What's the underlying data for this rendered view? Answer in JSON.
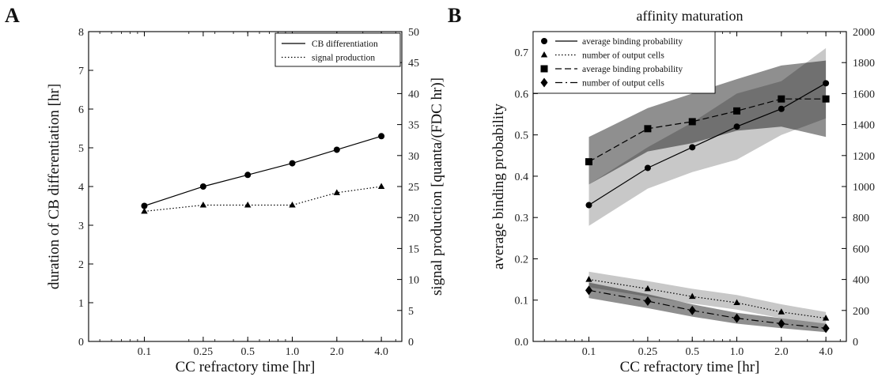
{
  "figure": {
    "panel_a_letter": "A",
    "panel_b_letter": "B"
  },
  "chart_data": [
    {
      "panel": "A",
      "type": "line",
      "title": "",
      "xlabel": "CC refractory time [hr]",
      "ylabel_left": "duration of CB differentiation [hr]",
      "ylabel_right": "signal production [quanta/(FDC hr)]",
      "x_scale": "log",
      "x": [
        0.1,
        0.25,
        0.5,
        1.0,
        2.0,
        4.0
      ],
      "x_tick_labels": [
        "0.1",
        "0.25",
        "0.5",
        "1.0",
        "2.0",
        "4.0"
      ],
      "ylim_left": [
        0,
        8
      ],
      "ylim_right": [
        0,
        50
      ],
      "y_ticks_left": [
        "0",
        "1",
        "2",
        "3",
        "4",
        "5",
        "6",
        "7",
        "8"
      ],
      "y_ticks_right": [
        "0",
        "5",
        "10",
        "15",
        "20",
        "25",
        "30",
        "35",
        "40",
        "45",
        "50"
      ],
      "legend_position": "top-right",
      "series": [
        {
          "name": "CB differentiation",
          "axis": "left",
          "line": "solid",
          "marker": "circle",
          "color": "#000000",
          "values": [
            3.5,
            4.0,
            4.3,
            4.6,
            4.95,
            5.3
          ]
        },
        {
          "name": "signal production",
          "axis": "right",
          "line": "dotted",
          "marker": "triangle",
          "color": "#000000",
          "values": [
            21.0,
            22.0,
            22.0,
            22.0,
            24.0,
            25.0
          ]
        }
      ]
    },
    {
      "panel": "B",
      "type": "line",
      "title": "affinity maturation",
      "xlabel": "CC refractory time [hr]",
      "ylabel_left": "average binding probability",
      "ylabel_right": "number of output cells",
      "x_scale": "log",
      "x": [
        0.1,
        0.25,
        0.5,
        1.0,
        2.0,
        4.0
      ],
      "x_tick_labels": [
        "0.1",
        "0.25",
        "0.5",
        "1.0",
        "2.0",
        "4.0"
      ],
      "ylim_left": [
        0,
        0.75
      ],
      "ylim_right": [
        0,
        2000
      ],
      "y_ticks_left": [
        "0.0",
        "0.1",
        "0.2",
        "0.3",
        "0.4",
        "0.5",
        "0.6",
        "0.7"
      ],
      "y_ticks_right": [
        "0",
        "200",
        "400",
        "600",
        "800",
        "1000",
        "1200",
        "1400",
        "1600",
        "1800",
        "2000"
      ],
      "legend_position": "top-left",
      "series": [
        {
          "name": "average binding probability",
          "axis": "left",
          "line": "solid",
          "marker": "circle",
          "color": "#000000",
          "values": [
            0.33,
            0.42,
            0.47,
            0.52,
            0.563,
            0.625
          ],
          "band_low": [
            0.28,
            0.37,
            0.41,
            0.44,
            0.5,
            0.54
          ],
          "band_high": [
            0.38,
            0.47,
            0.53,
            0.6,
            0.63,
            0.71
          ],
          "band_color": "#c8c8c8"
        },
        {
          "name": "number of output cells",
          "axis": "right",
          "line": "dotted",
          "marker": "triangle",
          "color": "#000000",
          "values": [
            400,
            340,
            290,
            250,
            190,
            150
          ],
          "band_low": [
            350,
            290,
            245,
            205,
            150,
            115
          ],
          "band_high": [
            450,
            390,
            340,
            300,
            240,
            190
          ],
          "band_color": "#c8c8c8"
        },
        {
          "name": "average binding probability",
          "axis": "left",
          "line": "dashed",
          "marker": "square",
          "color": "#000000",
          "values": [
            0.435,
            0.515,
            0.532,
            0.558,
            0.587,
            0.587
          ],
          "band_low": [
            0.38,
            0.46,
            0.48,
            0.51,
            0.52,
            0.495
          ],
          "band_high": [
            0.495,
            0.565,
            0.6,
            0.635,
            0.668,
            0.68
          ],
          "band_color": "#8f8f8f"
        },
        {
          "name": "number of output cells",
          "axis": "right",
          "line": "dashdot",
          "marker": "diamond",
          "color": "#000000",
          "values": [
            330,
            260,
            200,
            150,
            115,
            85
          ],
          "band_low": [
            280,
            215,
            160,
            115,
            85,
            60
          ],
          "band_high": [
            380,
            305,
            240,
            185,
            150,
            115
          ],
          "band_color": "#8f8f8f"
        }
      ]
    }
  ]
}
